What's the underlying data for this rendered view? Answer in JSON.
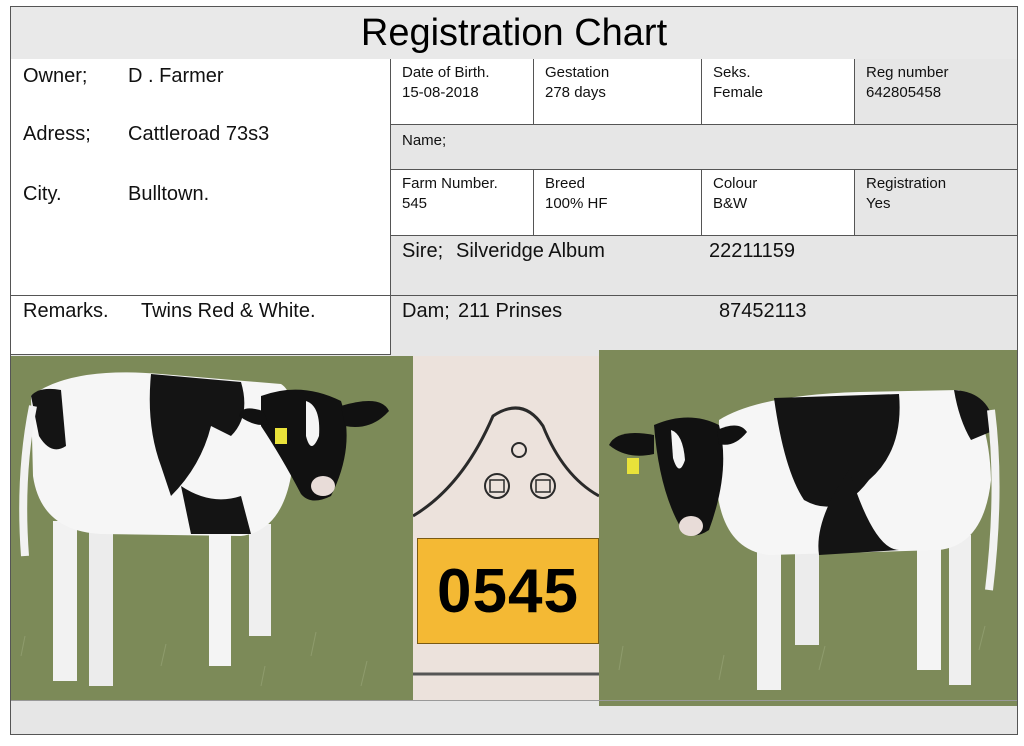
{
  "title": "Registration Chart",
  "owner": {
    "label": "Owner;",
    "value": "D . Farmer"
  },
  "address": {
    "label": "Adress;",
    "value": "Cattleroad 73s3"
  },
  "city": {
    "label": "City.",
    "value": "Bulltown."
  },
  "remarks": {
    "label": "Remarks.",
    "value": "Twins Red & White."
  },
  "fields": {
    "dob": {
      "label": "Date of Birth.",
      "value": "15-08-2018"
    },
    "gestation": {
      "label": "Gestation",
      "value": "278 days"
    },
    "seks": {
      "label": "Seks.",
      "value": "Female"
    },
    "reg_number": {
      "label": "Reg number",
      "value": "642805458"
    },
    "name": {
      "label": "Name;",
      "value": ""
    },
    "farm_number": {
      "label": "Farm Number.",
      "value": "545"
    },
    "breed": {
      "label": "Breed",
      "value": "100% HF"
    },
    "colour": {
      "label": "Colour",
      "value": "B&W"
    },
    "registration": {
      "label": "Registration",
      "value": "Yes"
    }
  },
  "sire": {
    "label": "Sire;",
    "name": "Silveridge Album",
    "number": "22211159"
  },
  "dam": {
    "label": "Dam;",
    "name": "211 Prinses",
    "number": "87452113"
  },
  "ear_tag": {
    "number": "0545",
    "color": "#f4b934"
  },
  "colors": {
    "border": "#555555",
    "grey_fill": "#e6e6e6",
    "grass": "#7f8e5b"
  }
}
